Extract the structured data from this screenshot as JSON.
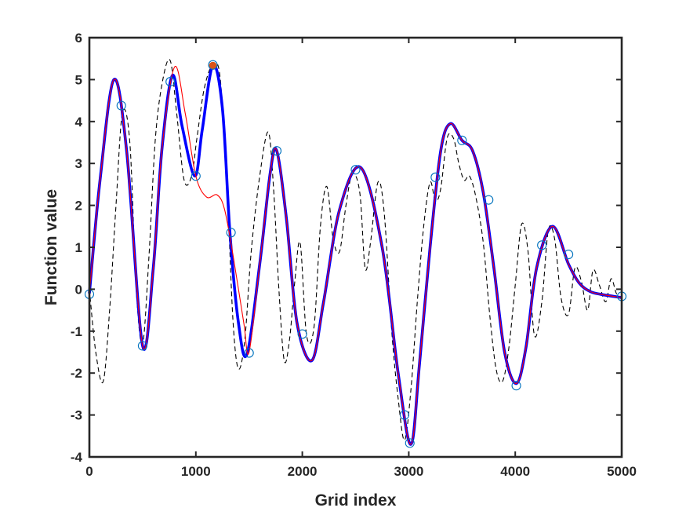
{
  "chart_data": {
    "type": "line",
    "title": "",
    "xlabel": "Grid index",
    "ylabel": "Function value",
    "xlim": [
      0,
      5000
    ],
    "ylim": [
      -4,
      6
    ],
    "xticks": [
      "0",
      "1000",
      "2000",
      "3000",
      "4000",
      "5000"
    ],
    "yticks": [
      "-4",
      "-3",
      "-2",
      "-1",
      "0",
      "1",
      "2",
      "3",
      "4",
      "5",
      "6"
    ],
    "grid": false,
    "legend": "none",
    "colors": {
      "blue_series": "#0000ff",
      "red_series": "#ff0000",
      "black_dashed_series": "#000000",
      "markers": "#0072bd",
      "highlight_point": "#d95319",
      "axes": "#262626"
    },
    "series": [
      {
        "style": "solid-thick-blue",
        "x": [
          0,
          100,
          230,
          350,
          500,
          600,
          680,
          780,
          870,
          990,
          1060,
          1160,
          1250,
          1320,
          1400,
          1480,
          1600,
          1700,
          1760,
          1850,
          1950,
          2090,
          2200,
          2350,
          2550,
          2750,
          2900,
          3020,
          3100,
          3200,
          3300,
          3390,
          3500,
          3600,
          3700,
          3800,
          3900,
          4010,
          4100,
          4200,
          4350,
          4500,
          4600,
          4700,
          4800,
          5000
        ],
        "y": [
          -0.1,
          2.6,
          5.0,
          3.3,
          -1.35,
          0.5,
          3.3,
          5.1,
          3.9,
          2.7,
          3.8,
          5.35,
          4.3,
          1.35,
          -0.8,
          -1.55,
          0.6,
          2.8,
          3.3,
          1.7,
          -0.8,
          -1.7,
          -0.3,
          1.9,
          2.9,
          1.0,
          -2.0,
          -3.7,
          -1.8,
          1.0,
          3.3,
          3.95,
          3.55,
          3.3,
          2.3,
          0.5,
          -1.5,
          -2.25,
          -1.4,
          0.5,
          1.5,
          0.6,
          0.15,
          -0.05,
          -0.12,
          -0.2
        ]
      },
      {
        "style": "solid-thin-red",
        "x": [
          0,
          100,
          230,
          350,
          500,
          600,
          680,
          800,
          900,
          1000,
          1100,
          1200,
          1270,
          1350,
          1450,
          1500,
          1600,
          1700,
          1760,
          1850,
          1950,
          2090,
          2200,
          2350,
          2550,
          2750,
          2900,
          3020,
          3100,
          3200,
          3300,
          3390,
          3500,
          3600,
          3700,
          3800,
          3900,
          4010,
          4100,
          4200,
          4350,
          4500,
          4600,
          4700,
          4800,
          5000
        ],
        "y": [
          -0.1,
          2.6,
          5.0,
          3.3,
          -1.35,
          0.5,
          3.3,
          5.3,
          4.2,
          2.7,
          2.2,
          2.25,
          1.9,
          0.8,
          -0.8,
          -1.5,
          0.6,
          2.8,
          3.3,
          1.7,
          -0.8,
          -1.7,
          -0.3,
          1.9,
          2.9,
          1.0,
          -2.0,
          -3.7,
          -1.8,
          1.0,
          3.3,
          3.95,
          3.55,
          3.3,
          2.3,
          0.5,
          -1.5,
          -2.25,
          -1.4,
          0.5,
          1.5,
          0.6,
          0.15,
          -0.05,
          -0.12,
          -0.2
        ]
      },
      {
        "style": "dashed-thin-black",
        "x": [
          0,
          60,
          130,
          190,
          250,
          310,
          380,
          440,
          500,
          560,
          620,
          690,
          760,
          820,
          890,
          960,
          1010,
          1080,
          1160,
          1230,
          1300,
          1350,
          1400,
          1460,
          1520,
          1600,
          1680,
          1730,
          1780,
          1830,
          1880,
          1930,
          1980,
          2040,
          2110,
          2170,
          2230,
          2290,
          2350,
          2410,
          2470,
          2540,
          2590,
          2640,
          2710,
          2770,
          2840,
          2900,
          2960,
          3020,
          3080,
          3140,
          3200,
          3250,
          3300,
          3360,
          3420,
          3470,
          3520,
          3570,
          3630,
          3700,
          3760,
          3820,
          3880,
          3940,
          4000,
          4060,
          4120,
          4180,
          4250,
          4310,
          4370,
          4430,
          4500,
          4560,
          4620,
          4680,
          4730,
          4790,
          4850,
          4900,
          4950,
          5000
        ],
        "y": [
          0,
          -1.5,
          -2.2,
          -0.5,
          2.0,
          4.2,
          3.5,
          0.0,
          -1.3,
          0.8,
          3.6,
          5.0,
          5.45,
          4.2,
          2.6,
          2.7,
          3.6,
          4.8,
          5.35,
          5.0,
          2.0,
          -0.8,
          -1.9,
          -1.2,
          0.9,
          2.7,
          3.75,
          2.4,
          0.0,
          -1.7,
          -1.2,
          0.2,
          1.1,
          -1.1,
          -0.9,
          1.5,
          2.45,
          1.2,
          0.9,
          2.0,
          2.75,
          2.3,
          0.5,
          1.1,
          2.55,
          1.8,
          -1.0,
          -2.6,
          -3.6,
          -2.4,
          -0.3,
          1.5,
          2.55,
          2.1,
          2.4,
          3.6,
          3.6,
          3.0,
          2.6,
          2.7,
          2.2,
          1.1,
          -0.6,
          -1.9,
          -2.2,
          -1.4,
          0.1,
          1.55,
          0.9,
          -1.1,
          -0.3,
          1.4,
          1.2,
          -0.2,
          -0.6,
          0.5,
          0.2,
          -0.5,
          0.45,
          0.1,
          -0.3,
          0.25,
          -0.1,
          -0.2
        ]
      }
    ],
    "markers": {
      "x": [
        0,
        300,
        500,
        760,
        1000,
        1160,
        1330,
        1500,
        1760,
        2000,
        2500,
        2960,
        3010,
        3250,
        3500,
        3750,
        4010,
        4250,
        4500,
        5000
      ],
      "y": [
        -0.12,
        4.38,
        -1.35,
        4.95,
        2.7,
        5.35,
        1.35,
        -1.52,
        3.3,
        -1.07,
        2.85,
        -3.0,
        -3.67,
        2.67,
        3.55,
        2.13,
        -2.3,
        1.05,
        0.83,
        -0.17
      ]
    },
    "highlight": {
      "x": 1160,
      "y": 5.33
    }
  }
}
